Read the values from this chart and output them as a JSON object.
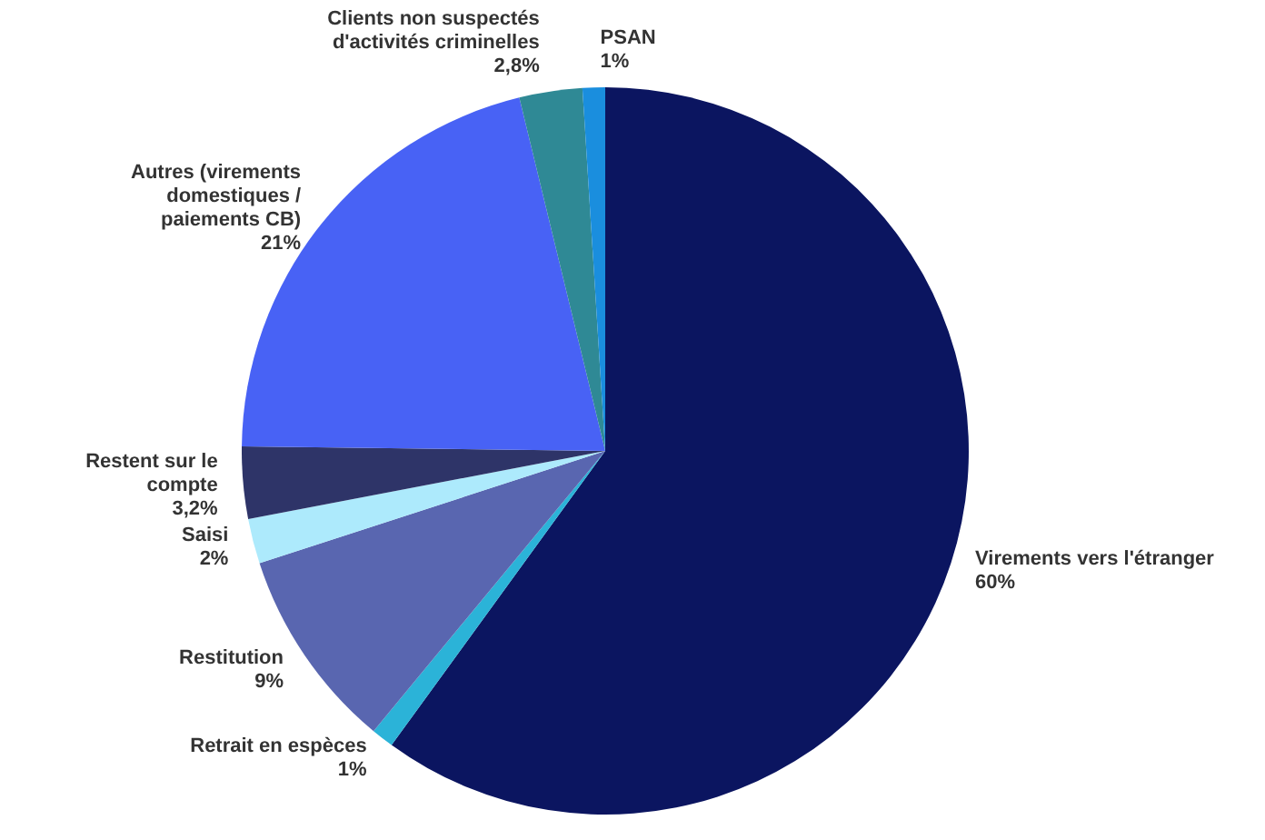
{
  "chart_data": {
    "type": "pie",
    "categories": [
      "Virements vers l'étranger",
      "Retrait en espèces",
      "Restitution",
      "Saisi",
      "Restent sur le\ncompte",
      "Autres (virements\ndomestiques /\npaiements CB)",
      "Clients non suspectés\nd'activités criminelles",
      "PSAN"
    ],
    "values": [
      60,
      1,
      9,
      2,
      3.2,
      21,
      2.8,
      1
    ],
    "value_labels": [
      "60%",
      "1%",
      "9%",
      "2%",
      "3,2%",
      "21%",
      "2,8%",
      "1%"
    ],
    "colors": [
      "#0b1560",
      "#2bb3d8",
      "#5966b0",
      "#adeafc",
      "#2e3468",
      "#4862f5",
      "#2f8995",
      "#1a8ede"
    ]
  }
}
